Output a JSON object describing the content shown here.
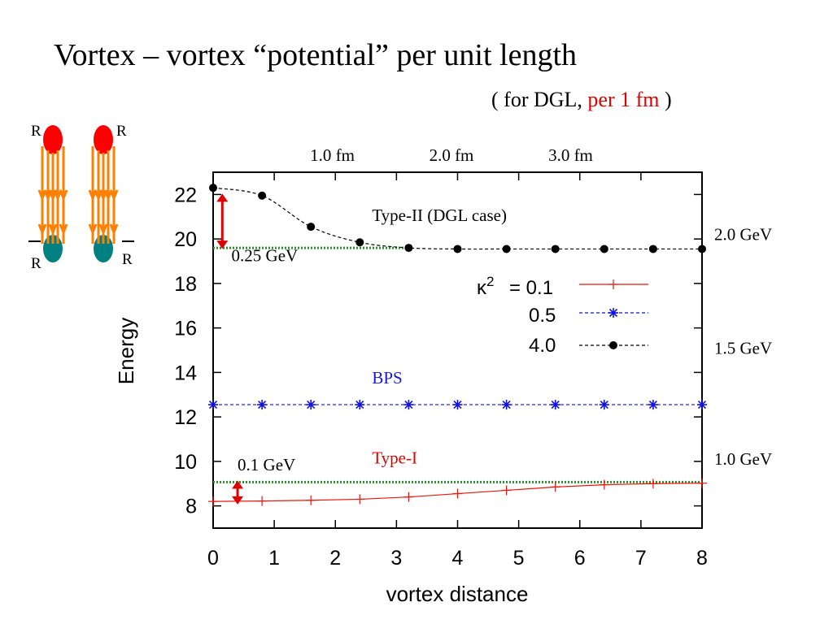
{
  "header": {
    "title": "Vortex – vortex “potential” per unit length",
    "subtitle_open": "( for DGL, ",
    "subtitle_red": "per 1 fm",
    "subtitle_close": " )"
  },
  "inset": {
    "labels": [
      "R",
      "R",
      "R",
      "R"
    ],
    "colors": {
      "top_ball": "#ff0000",
      "bottom_ball": "#008080",
      "flux": "#ff7f00"
    }
  },
  "chart_data": {
    "type": "line",
    "xlabel": "vortex distance",
    "ylabel": "Energy",
    "xlim": [
      0,
      8
    ],
    "ylim": [
      7,
      23
    ],
    "x_ticks": [
      0,
      1,
      2,
      3,
      4,
      5,
      6,
      7,
      8
    ],
    "y_ticks": [
      8,
      10,
      12,
      14,
      16,
      18,
      20,
      22
    ],
    "top_axis_ticks": [
      {
        "label": "1.0 fm",
        "x": 1.95
      },
      {
        "label": "2.0 fm",
        "x": 3.9
      },
      {
        "label": "3.0 fm",
        "x": 5.85
      }
    ],
    "right_axis_labels": [
      {
        "label": "2.0 GeV",
        "y": 20.2
      },
      {
        "label": "1.5 GeV",
        "y": 15.1
      },
      {
        "label": "1.0 GeV",
        "y": 10.1
      }
    ],
    "legend": {
      "placement": "top-right",
      "prefix": "κ²"
    },
    "series": [
      {
        "name": "= 0.1",
        "color": "#e8180c",
        "line": "solid",
        "marker": "plus",
        "x": [
          0,
          0.8,
          1.6,
          2.4,
          3.2,
          4.0,
          4.8,
          5.6,
          6.4,
          7.2,
          8.0
        ],
        "y": [
          8.2,
          8.22,
          8.25,
          8.3,
          8.4,
          8.55,
          8.7,
          8.85,
          8.95,
          9.0,
          9.02
        ]
      },
      {
        "name": "0.5",
        "color": "#1010e0",
        "line": "dashed",
        "marker": "asterisk",
        "x": [
          0,
          0.8,
          1.6,
          2.4,
          3.2,
          4.0,
          4.8,
          5.6,
          6.4,
          7.2,
          8.0
        ],
        "y": [
          12.55,
          12.55,
          12.55,
          12.55,
          12.55,
          12.55,
          12.55,
          12.55,
          12.55,
          12.55,
          12.55
        ]
      },
      {
        "name": "4.0",
        "color": "#000000",
        "line": "dashed",
        "marker": "dot",
        "x": [
          0,
          0.8,
          1.6,
          2.4,
          3.2,
          4.0,
          4.8,
          5.6,
          6.4,
          7.2,
          8.0
        ],
        "y": [
          22.3,
          21.95,
          20.55,
          19.85,
          19.6,
          19.55,
          19.55,
          19.55,
          19.55,
          19.55,
          19.55
        ]
      }
    ],
    "reference_lines": [
      {
        "y": 19.6,
        "x0": 0,
        "x1": 3.2,
        "color": "#2e8b2e"
      },
      {
        "y": 9.07,
        "x0": 0,
        "x1": 8.0,
        "color": "#2e8b2e"
      }
    ],
    "annotations": [
      {
        "text": "Type-II  (DGL case)",
        "x": 2.6,
        "y": 20.8,
        "color": "#000000"
      },
      {
        "text": "0.25 GeV",
        "x": 0.3,
        "y": 19.0,
        "color": "#000000"
      },
      {
        "text": "BPS",
        "x": 2.6,
        "y": 13.5,
        "color": "#1a1acc"
      },
      {
        "text": "Type-I",
        "x": 2.6,
        "y": 9.9,
        "color": "#e00000"
      },
      {
        "text": "0.1 GeV",
        "x": 0.4,
        "y": 9.6,
        "color": "#000000"
      }
    ],
    "arrows": [
      {
        "x": 0.15,
        "y0": 22.0,
        "y1": 19.6,
        "color": "#e00000"
      },
      {
        "x": 0.4,
        "y0": 9.1,
        "y1": 8.1,
        "color": "#e00000"
      }
    ]
  }
}
